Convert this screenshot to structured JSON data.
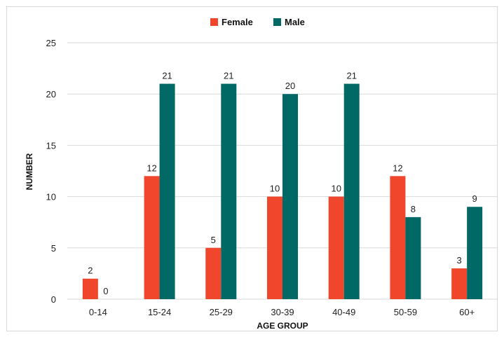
{
  "chart_data": {
    "type": "bar",
    "xlabel": "AGE GROUP",
    "ylabel": "NUMBER",
    "ylim": [
      0,
      25
    ],
    "yticks": [
      0,
      5,
      10,
      15,
      20,
      25
    ],
    "categories": [
      "0-14",
      "15-24",
      "25-29",
      "30-39",
      "40-49",
      "50-59",
      "60+"
    ],
    "series": [
      {
        "name": "Female",
        "color": "#f0462b",
        "values": [
          2,
          12,
          5,
          10,
          10,
          12,
          3
        ]
      },
      {
        "name": "Male",
        "color": "#006965",
        "values": [
          0,
          21,
          21,
          20,
          21,
          8,
          9
        ]
      }
    ],
    "legend_position": "top",
    "grid": true,
    "gridline_color": "#d9d9d9"
  }
}
